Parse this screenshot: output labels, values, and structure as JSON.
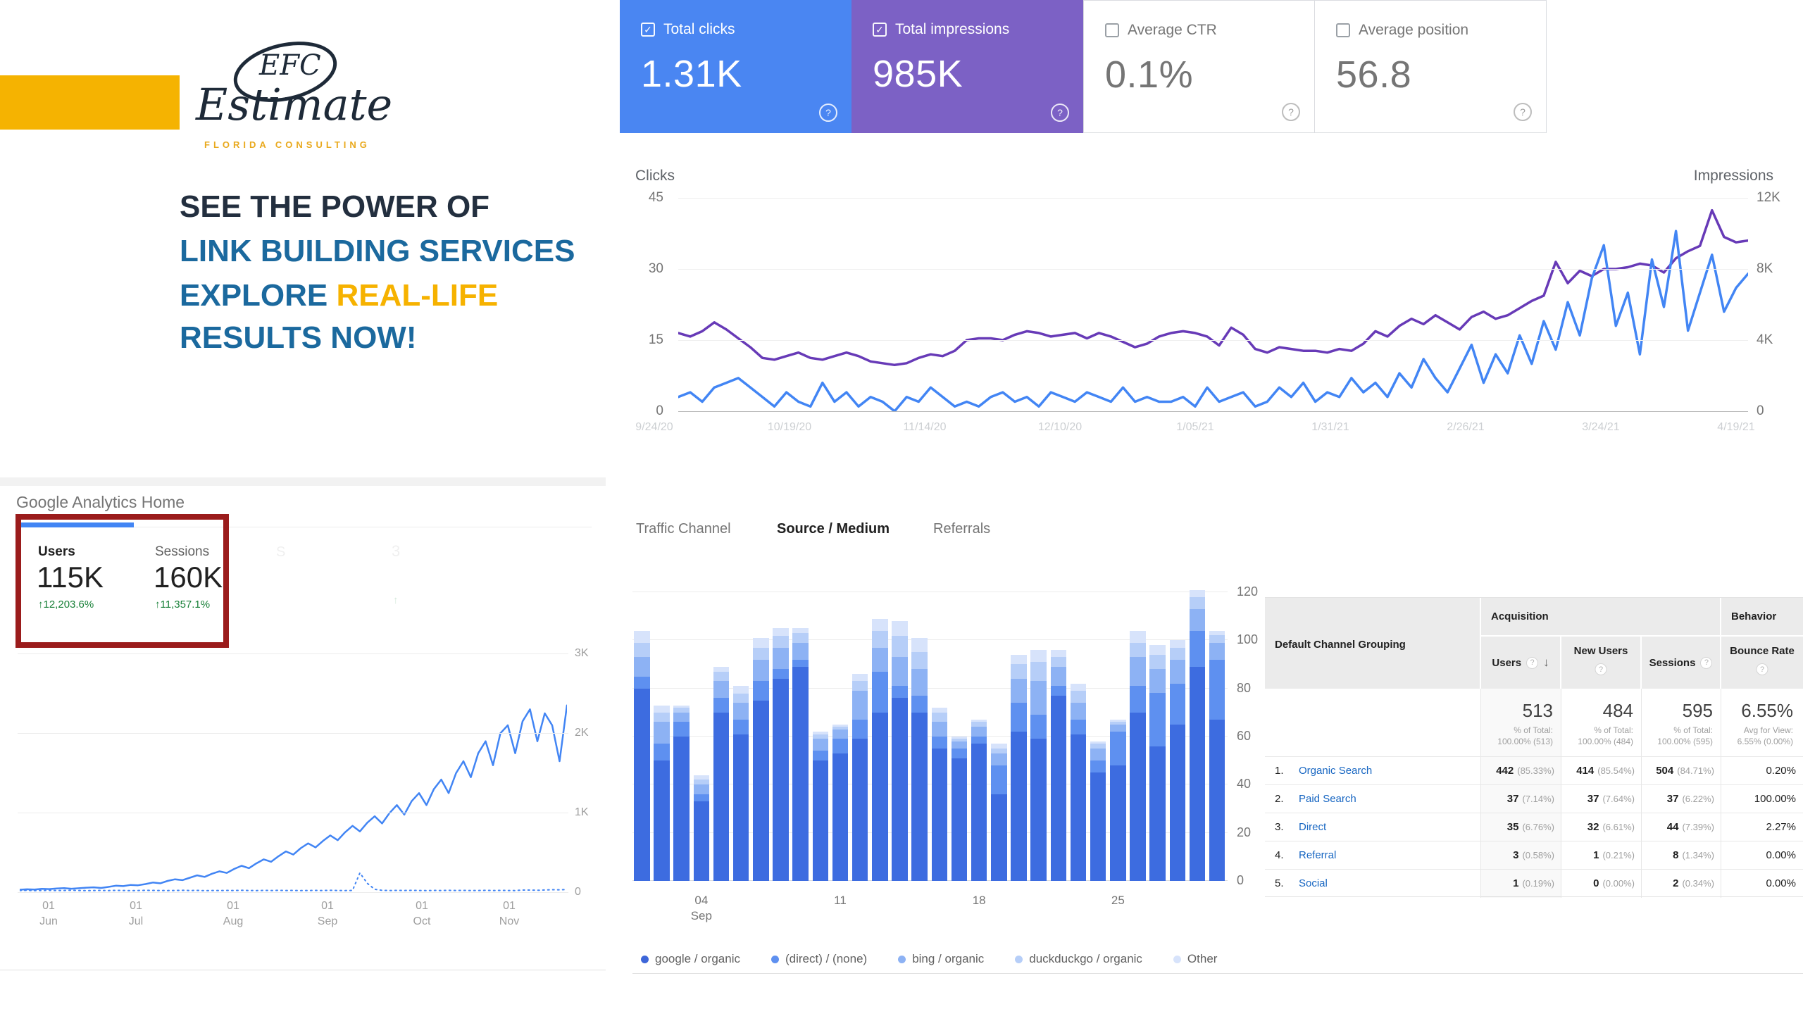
{
  "icons": {
    "help": "?",
    "check": "✓",
    "sort_desc": "↓",
    "up_arrow": "↑"
  },
  "brand": {
    "monogram": "EFC",
    "word": "Estimate",
    "subtitle": "FLORIDA CONSULTING",
    "accent_yellow": "#f5b301",
    "navy": "#1e2a38",
    "gold_text": "#e9a91d"
  },
  "headline": {
    "line1": "SEE THE POWER OF",
    "line2": "LINK BUILDING SERVICES",
    "line3_blue": "EXPLORE ",
    "line3_yellow": "REAL-LIFE",
    "line4": "RESULTS NOW!",
    "navy": "#232f3f",
    "blue": "#1b699e",
    "yellow": "#f6b200"
  },
  "search_console": {
    "cards": [
      {
        "label": "Total clicks",
        "value": "1.31K",
        "checked": true,
        "bg": "#4a86f2",
        "fg": "#ffffff"
      },
      {
        "label": "Total impressions",
        "value": "985K",
        "checked": true,
        "bg": "#7c61c5",
        "fg": "#ffffff"
      },
      {
        "label": "Average CTR",
        "value": "0.1%",
        "checked": false,
        "bg": "#ffffff",
        "fg": "#757575"
      },
      {
        "label": "Average position",
        "value": "56.8",
        "checked": false,
        "bg": "#ffffff",
        "fg": "#757575"
      }
    ],
    "chart_data": {
      "type": "line",
      "left_axis": {
        "title": "Clicks",
        "ticks": [
          "45",
          "30",
          "15",
          "0"
        ],
        "max": 45
      },
      "right_axis": {
        "title": "Impressions",
        "ticks": [
          "12K",
          "8K",
          "4K",
          "0"
        ],
        "max_k": 12
      },
      "x_labels": [
        "9/24/20",
        "10/19/20",
        "11/14/20",
        "12/10/20",
        "1/05/21",
        "1/31/21",
        "2/26/21",
        "3/24/21",
        "4/19/21"
      ],
      "series": [
        {
          "name": "Clicks",
          "color": "#4285f4",
          "axis": "left",
          "values": [
            3,
            4,
            2,
            5,
            6,
            7,
            5,
            3,
            1,
            4,
            2,
            1,
            6,
            2,
            4,
            1,
            3,
            2,
            0,
            3,
            2,
            5,
            3,
            1,
            2,
            1,
            3,
            4,
            2,
            3,
            1,
            4,
            3,
            2,
            4,
            3,
            2,
            5,
            2,
            3,
            2,
            2,
            3,
            1,
            5,
            2,
            3,
            4,
            1,
            2,
            5,
            3,
            6,
            2,
            4,
            3,
            7,
            4,
            6,
            3,
            8,
            5,
            11,
            7,
            4,
            9,
            14,
            6,
            12,
            8,
            16,
            10,
            19,
            13,
            23,
            16,
            28,
            35,
            18,
            25,
            12,
            32,
            22,
            38,
            17,
            25,
            33,
            21,
            26,
            29
          ]
        },
        {
          "name": "Impressions",
          "color": "#673ab7",
          "axis": "right",
          "values_k": [
            4.4,
            4.2,
            4.5,
            5.0,
            4.6,
            4.1,
            3.6,
            3.0,
            2.9,
            3.1,
            3.3,
            3.0,
            2.9,
            3.1,
            3.3,
            3.1,
            2.8,
            2.7,
            2.6,
            2.7,
            3.0,
            3.2,
            3.1,
            3.4,
            4.0,
            4.1,
            4.1,
            4.0,
            4.3,
            4.5,
            4.4,
            4.2,
            4.3,
            4.4,
            4.1,
            4.4,
            4.2,
            3.9,
            3.6,
            3.8,
            4.2,
            4.4,
            4.5,
            4.4,
            4.2,
            3.7,
            4.7,
            4.3,
            3.5,
            3.3,
            3.6,
            3.5,
            3.4,
            3.4,
            3.3,
            3.5,
            3.4,
            3.8,
            4.5,
            4.2,
            4.8,
            5.2,
            4.9,
            5.4,
            5.0,
            4.6,
            5.3,
            5.6,
            5.2,
            5.4,
            5.8,
            6.2,
            6.5,
            8.4,
            7.2,
            7.9,
            7.6,
            8.0,
            8.0,
            8.1,
            8.3,
            8.2,
            7.8,
            8.6,
            9.0,
            9.3,
            11.3,
            9.8,
            9.5,
            9.6
          ]
        }
      ]
    }
  },
  "analytics": {
    "title": "Google Analytics Home",
    "highlight_border": "#9b1c1c",
    "scorecards": [
      {
        "label": "Users",
        "value": "115K",
        "change": "12,203.6%"
      },
      {
        "label": "Sessions",
        "value": "160K",
        "change": "11,357.1%"
      }
    ],
    "ghost_letters": [
      "S",
      "3"
    ],
    "chart_data": {
      "type": "line",
      "y_ticks": [
        "3K",
        "2K",
        "1K",
        "0"
      ],
      "y_max": 3000,
      "x_months": [
        {
          "day": "01",
          "month": "Jun"
        },
        {
          "day": "01",
          "month": "Jul"
        },
        {
          "day": "01",
          "month": "Aug"
        },
        {
          "day": "01",
          "month": "Sep"
        },
        {
          "day": "01",
          "month": "Oct"
        },
        {
          "day": "01",
          "month": "Nov"
        }
      ],
      "series": [
        {
          "name": "Users",
          "style": "solid",
          "color": "#4285f4",
          "values": [
            40,
            45,
            42,
            50,
            48,
            55,
            60,
            52,
            58,
            65,
            70,
            62,
            75,
            90,
            85,
            100,
            95,
            110,
            130,
            120,
            150,
            170,
            160,
            190,
            220,
            200,
            240,
            270,
            250,
            300,
            340,
            310,
            370,
            420,
            390,
            460,
            520,
            480,
            560,
            620,
            570,
            650,
            720,
            660,
            760,
            840,
            770,
            880,
            960,
            870,
            1000,
            1100,
            980,
            1150,
            1250,
            1100,
            1300,
            1420,
            1250,
            1500,
            1650,
            1450,
            1750,
            1900,
            1600,
            2000,
            2100,
            1750,
            2150,
            2300,
            1900,
            2250,
            2100,
            1650,
            2350
          ]
        },
        {
          "name": "Previous period",
          "style": "dotted",
          "color": "#4285f4",
          "values": [
            30,
            32,
            28,
            30,
            31,
            29,
            30,
            33,
            30,
            28,
            30,
            31,
            29,
            32,
            30,
            28,
            30,
            32,
            31,
            30,
            29,
            30,
            32,
            30,
            31,
            28,
            30,
            29,
            31,
            30,
            32,
            30,
            29,
            31,
            30,
            32,
            30,
            31,
            29,
            30,
            31,
            30,
            32,
            30,
            29,
            31,
            250,
            120,
            45,
            32,
            30,
            31,
            30,
            32,
            30,
            29,
            31,
            30,
            32,
            30,
            31,
            29,
            30,
            32,
            30,
            31,
            30,
            29,
            35,
            35,
            33,
            36,
            40,
            38,
            42
          ]
        }
      ]
    }
  },
  "traffic": {
    "tabs": [
      {
        "label": "Traffic Channel",
        "active": false
      },
      {
        "label": "Source / Medium",
        "active": true
      },
      {
        "label": "Referrals",
        "active": false
      }
    ],
    "legend": [
      {
        "label": "google / organic",
        "color": "#3d66d9"
      },
      {
        "label": "(direct) / (none)",
        "color": "#5e90f0"
      },
      {
        "label": "bing / organic",
        "color": "#8db2f4"
      },
      {
        "label": "duckduckgo / organic",
        "color": "#b6cef8"
      },
      {
        "label": "Other",
        "color": "#d7e3fb"
      }
    ],
    "chart_data": {
      "type": "stacked-bar",
      "y_ticks": [
        "120",
        "100",
        "80",
        "60",
        "40",
        "20",
        "0"
      ],
      "y_max": 120,
      "x_ticks": [
        {
          "label": "04",
          "sub": "Sep",
          "bar_index": 3
        },
        {
          "label": "11",
          "sub": "",
          "bar_index": 10
        },
        {
          "label": "18",
          "sub": "",
          "bar_index": 17
        },
        {
          "label": "25",
          "sub": "",
          "bar_index": 24
        }
      ],
      "series_keys": [
        "google / organic",
        "(direct) / (none)",
        "bing / organic",
        "duckduckgo / organic",
        "Other"
      ],
      "colors": [
        "#3d6ce0",
        "#5e90f0",
        "#8db2f4",
        "#b6cef8",
        "#d7e3fb"
      ],
      "bars": [
        [
          80,
          5,
          8,
          6,
          5
        ],
        [
          50,
          7,
          9,
          4,
          3
        ],
        [
          60,
          6,
          4,
          2,
          1
        ],
        [
          33,
          3,
          4,
          2,
          2
        ],
        [
          70,
          6,
          7,
          4,
          2
        ],
        [
          61,
          6,
          7,
          4,
          3
        ],
        [
          75,
          8,
          9,
          5,
          4
        ],
        [
          84,
          4,
          9,
          5,
          3
        ],
        [
          89,
          3,
          7,
          4,
          2
        ],
        [
          50,
          4,
          5,
          2,
          1
        ],
        [
          53,
          6,
          4,
          1,
          1
        ],
        [
          59,
          8,
          12,
          4,
          3
        ],
        [
          70,
          17,
          10,
          7,
          5
        ],
        [
          76,
          5,
          12,
          9,
          6
        ],
        [
          70,
          7,
          11,
          7,
          6
        ],
        [
          55,
          5,
          6,
          4,
          2
        ],
        [
          51,
          4,
          3,
          1,
          1
        ],
        [
          57,
          3,
          4,
          2,
          1
        ],
        [
          36,
          12,
          5,
          2,
          2
        ],
        [
          62,
          12,
          10,
          6,
          4
        ],
        [
          59,
          10,
          14,
          8,
          5
        ],
        [
          77,
          4,
          8,
          4,
          3
        ],
        [
          61,
          6,
          7,
          5,
          3
        ],
        [
          45,
          5,
          5,
          2,
          1
        ],
        [
          48,
          14,
          3,
          1,
          1
        ],
        [
          70,
          11,
          12,
          6,
          5
        ],
        [
          56,
          22,
          10,
          6,
          4
        ],
        [
          65,
          17,
          10,
          5,
          3
        ],
        [
          89,
          15,
          9,
          5,
          3
        ],
        [
          67,
          25,
          7,
          3,
          2
        ]
      ]
    }
  },
  "table": {
    "row_header": "Default Channel Grouping",
    "group_acquisition": "Acquisition",
    "group_behavior": "Behavior",
    "col_users": "Users",
    "col_new_users": "New Users",
    "col_sessions": "Sessions",
    "col_bounce": "Bounce Rate",
    "summary": {
      "users": {
        "value": "513",
        "sub1": "% of Total:",
        "sub2": "100.00% (513)"
      },
      "new_users": {
        "value": "484",
        "sub1": "% of Total:",
        "sub2": "100.00% (484)"
      },
      "sessions": {
        "value": "595",
        "sub1": "% of Total:",
        "sub2": "100.00% (595)"
      },
      "bounce": {
        "value": "6.55%",
        "sub1": "Avg for View:",
        "sub2": "6.55% (0.00%)"
      }
    },
    "rows": [
      {
        "n": "1.",
        "channel": "Organic Search",
        "users": "442",
        "users_pct": "(85.33%)",
        "new_users": "414",
        "new_users_pct": "(85.54%)",
        "sessions": "504",
        "sessions_pct": "(84.71%)",
        "bounce": "0.20%"
      },
      {
        "n": "2.",
        "channel": "Paid Search",
        "users": "37",
        "users_pct": "(7.14%)",
        "new_users": "37",
        "new_users_pct": "(7.64%)",
        "sessions": "37",
        "sessions_pct": "(6.22%)",
        "bounce": "100.00%"
      },
      {
        "n": "3.",
        "channel": "Direct",
        "users": "35",
        "users_pct": "(6.76%)",
        "new_users": "32",
        "new_users_pct": "(6.61%)",
        "sessions": "44",
        "sessions_pct": "(7.39%)",
        "bounce": "2.27%"
      },
      {
        "n": "4.",
        "channel": "Referral",
        "users": "3",
        "users_pct": "(0.58%)",
        "new_users": "1",
        "new_users_pct": "(0.21%)",
        "sessions": "8",
        "sessions_pct": "(1.34%)",
        "bounce": "0.00%"
      },
      {
        "n": "5.",
        "channel": "Social",
        "users": "1",
        "users_pct": "(0.19%)",
        "new_users": "0",
        "new_users_pct": "(0.00%)",
        "sessions": "2",
        "sessions_pct": "(0.34%)",
        "bounce": "0.00%"
      }
    ]
  }
}
